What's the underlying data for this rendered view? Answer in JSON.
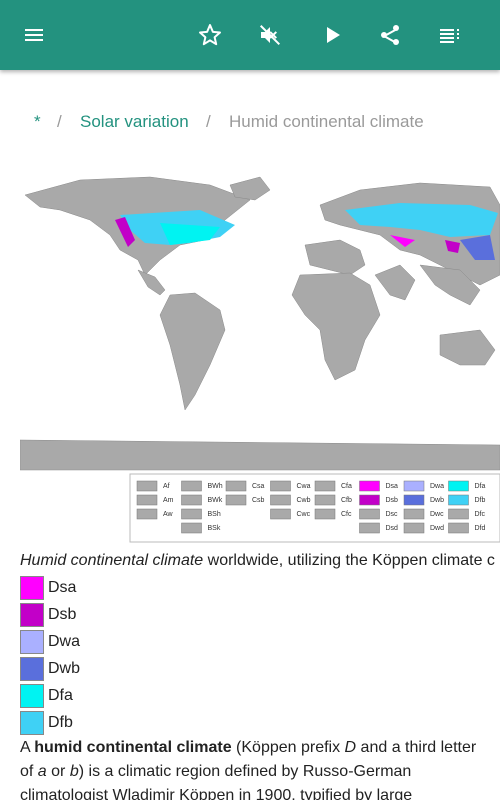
{
  "breadcrumb": [
    "*",
    "Solar variation",
    "Humid continental climate"
  ],
  "breadcrumb_separator": "/",
  "map_legend": [
    [
      {
        "label": "Af",
        "color": "#a9a9a9"
      },
      {
        "label": "Am",
        "color": "#a9a9a9"
      },
      {
        "label": "Aw",
        "color": "#a9a9a9"
      }
    ],
    [
      {
        "label": "BWh",
        "color": "#a9a9a9"
      },
      {
        "label": "BWk",
        "color": "#a9a9a9"
      },
      {
        "label": "BSh",
        "color": "#a9a9a9"
      },
      {
        "label": "BSk",
        "color": "#a9a9a9"
      }
    ],
    [
      {
        "label": "Csa",
        "color": "#a9a9a9"
      },
      {
        "label": "Csb",
        "color": "#a9a9a9"
      }
    ],
    [
      {
        "label": "Cwa",
        "color": "#a9a9a9"
      },
      {
        "label": "Cwb",
        "color": "#a9a9a9"
      },
      {
        "label": "Cwc",
        "color": "#a9a9a9"
      }
    ],
    [
      {
        "label": "Cfa",
        "color": "#a9a9a9"
      },
      {
        "label": "Cfb",
        "color": "#a9a9a9"
      },
      {
        "label": "Cfc",
        "color": "#a9a9a9"
      }
    ],
    [
      {
        "label": "Dsa",
        "color": "#ff00ff"
      },
      {
        "label": "Dsb",
        "color": "#c200c8"
      },
      {
        "label": "Dsc",
        "color": "#a9a9a9"
      },
      {
        "label": "Dsd",
        "color": "#a9a9a9"
      }
    ],
    [
      {
        "label": "Dwa",
        "color": "#aab0ff"
      },
      {
        "label": "Dwb",
        "color": "#5a6fdc"
      },
      {
        "label": "Dwc",
        "color": "#a9a9a9"
      },
      {
        "label": "Dwd",
        "color": "#a9a9a9"
      }
    ],
    [
      {
        "label": "Dfa",
        "color": "#00f3f2"
      },
      {
        "label": "Dfb",
        "color": "#3fd1f5"
      },
      {
        "label": "Dfc",
        "color": "#a9a9a9"
      },
      {
        "label": "Dfd",
        "color": "#a9a9a9"
      }
    ]
  ],
  "caption": [
    {
      "text": "Humid continental climate",
      "style": "italic"
    },
    {
      "text": " worldwide, utilizing the Köppen climate c"
    }
  ],
  "key": [
    {
      "label": "Dsa",
      "color": "#ff00ff"
    },
    {
      "label": "Dsb",
      "color": "#c200c8"
    },
    {
      "label": "Dwa",
      "color": "#aab0ff"
    },
    {
      "label": "Dwb",
      "color": "#5a6fdc"
    },
    {
      "label": "Dfa",
      "color": "#00f3f2"
    },
    {
      "label": "Dfb",
      "color": "#3fd1f5"
    }
  ],
  "paragraph": [
    {
      "text": "A "
    },
    {
      "text": "humid continental climate",
      "style": "bold"
    },
    {
      "text": " (Köppen prefix "
    },
    {
      "text": "D",
      "style": "italic"
    },
    {
      "text": " and a third letter of "
    },
    {
      "text": "a",
      "style": "italic"
    },
    {
      "text": " or "
    },
    {
      "text": "b",
      "style": "italic"
    },
    {
      "text": ") is a climatic region defined by Russo-German climatologist Wladimir Köppen in 1900, typified by large"
    }
  ]
}
